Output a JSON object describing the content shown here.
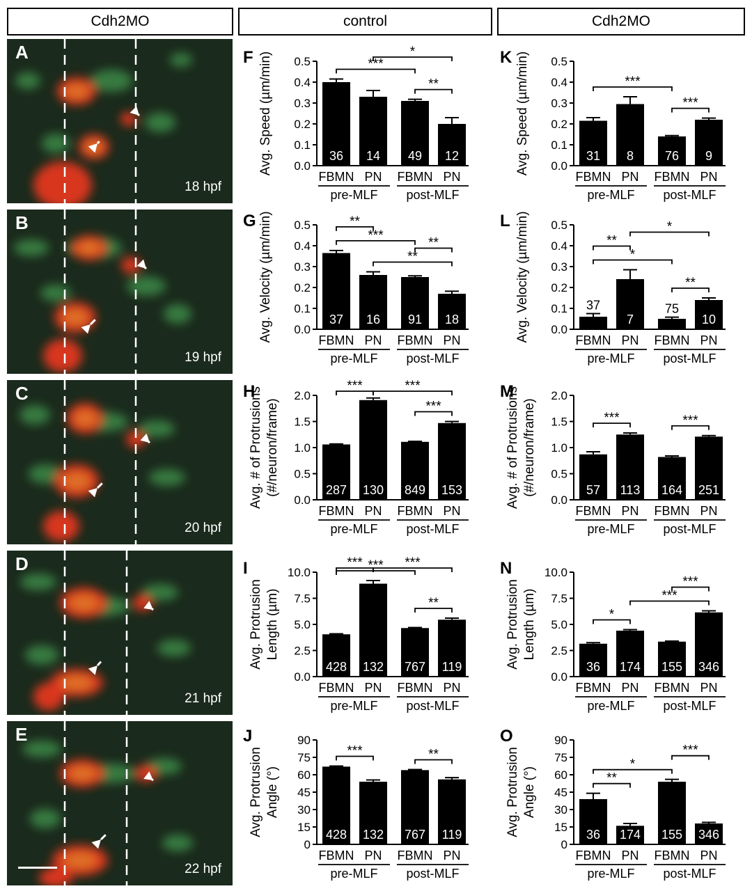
{
  "headers": {
    "left": "Cdh2MO",
    "middle": "control",
    "right": "Cdh2MO"
  },
  "micro_panels": [
    {
      "label": "A",
      "time": "18 hpf"
    },
    {
      "label": "B",
      "time": "19 hpf"
    },
    {
      "label": "C",
      "time": "20 hpf"
    },
    {
      "label": "D",
      "time": "21 hpf"
    },
    {
      "label": "E",
      "time": "22 hpf"
    }
  ],
  "chart_data": [
    {
      "panel": "F",
      "type": "bar",
      "ylabel": [
        "Avg. Speed (µm/min)"
      ],
      "ylim": [
        0,
        0.5
      ],
      "yticks": [
        "0.0",
        "0.1",
        "0.2",
        "0.3",
        "0.4",
        "0.5"
      ],
      "categories": [
        "FBMN",
        "PN",
        "FBMN",
        "PN"
      ],
      "groups": [
        "pre-MLF",
        "post-MLF"
      ],
      "values": [
        0.4,
        0.33,
        0.31,
        0.2
      ],
      "errors": [
        0.015,
        0.03,
        0.008,
        0.03
      ],
      "n": [
        "36",
        "14",
        "49",
        "12"
      ],
      "brackets": [
        {
          "from": 0,
          "to": 2,
          "label": "***"
        },
        {
          "from": 1,
          "to": 3,
          "label": "*"
        },
        {
          "from": 2,
          "to": 3,
          "label": "**"
        }
      ]
    },
    {
      "panel": "G",
      "type": "bar",
      "ylabel": [
        "Avg. Velocity (µm/min)"
      ],
      "ylim": [
        0,
        0.5
      ],
      "yticks": [
        "0.0",
        "0.1",
        "0.2",
        "0.3",
        "0.4",
        "0.5"
      ],
      "categories": [
        "FBMN",
        "PN",
        "FBMN",
        "PN"
      ],
      "groups": [
        "pre-MLF",
        "post-MLF"
      ],
      "values": [
        0.365,
        0.26,
        0.25,
        0.17
      ],
      "errors": [
        0.012,
        0.015,
        0.006,
        0.012
      ],
      "n": [
        "37",
        "16",
        "91",
        "18"
      ],
      "brackets": [
        {
          "from": 0,
          "to": 2,
          "label": "***"
        },
        {
          "from": 0,
          "to": 1,
          "label": "**"
        },
        {
          "from": 1,
          "to": 3,
          "label": "**"
        },
        {
          "from": 2,
          "to": 3,
          "label": "**"
        }
      ]
    },
    {
      "panel": "H",
      "type": "bar",
      "ylabel": [
        "Avg. # of Protrusions",
        "(#/neuron/frame)"
      ],
      "ylim": [
        0,
        2
      ],
      "yticks": [
        "0.0",
        "0.5",
        "1.0",
        "1.5",
        "2.0"
      ],
      "categories": [
        "FBMN",
        "PN",
        "FBMN",
        "PN"
      ],
      "groups": [
        "pre-MLF",
        "post-MLF"
      ],
      "values": [
        1.06,
        1.91,
        1.11,
        1.47
      ],
      "errors": [
        0.01,
        0.04,
        0.01,
        0.03
      ],
      "n": [
        "287",
        "130",
        "849",
        "153"
      ],
      "brackets": [
        {
          "from": 0,
          "to": 1,
          "label": "***"
        },
        {
          "from": 1,
          "to": 3,
          "label": "***"
        },
        {
          "from": 2,
          "to": 3,
          "label": "***"
        }
      ]
    },
    {
      "panel": "I",
      "type": "bar",
      "ylabel": [
        "Avg. Protrusion",
        "Length (µm)"
      ],
      "ylim": [
        0,
        10
      ],
      "yticks": [
        "0.0",
        "2.5",
        "5.0",
        "7.5",
        "10.0"
      ],
      "categories": [
        "FBMN",
        "PN",
        "FBMN",
        "PN"
      ],
      "groups": [
        "pre-MLF",
        "post-MLF"
      ],
      "values": [
        4.05,
        8.9,
        4.65,
        5.45
      ],
      "errors": [
        0.05,
        0.3,
        0.05,
        0.15
      ],
      "n": [
        "428",
        "132",
        "767",
        "119"
      ],
      "brackets": [
        {
          "from": 0,
          "to": 2,
          "label": "***"
        },
        {
          "from": 0,
          "to": 1,
          "label": "***"
        },
        {
          "from": 1,
          "to": 3,
          "label": "***"
        },
        {
          "from": 2,
          "to": 3,
          "label": "**"
        }
      ]
    },
    {
      "panel": "J",
      "type": "bar",
      "ylabel": [
        "Avg. Protrusion",
        "Angle (°)"
      ],
      "ylim": [
        0,
        90
      ],
      "yticks": [
        "0",
        "15",
        "30",
        "45",
        "60",
        "75",
        "90"
      ],
      "categories": [
        "FBMN",
        "PN",
        "FBMN",
        "PN"
      ],
      "groups": [
        "pre-MLF",
        "post-MLF"
      ],
      "values": [
        67,
        54,
        64,
        56
      ],
      "errors": [
        0.5,
        1.5,
        0.5,
        1.5
      ],
      "n": [
        "428",
        "132",
        "767",
        "119"
      ],
      "brackets": [
        {
          "from": 0,
          "to": 1,
          "label": "***"
        },
        {
          "from": 2,
          "to": 3,
          "label": "**"
        }
      ]
    },
    {
      "panel": "K",
      "type": "bar",
      "ylabel": [
        "Avg. Speed (µm/min)"
      ],
      "ylim": [
        0,
        0.5
      ],
      "yticks": [
        "0.0",
        "0.1",
        "0.2",
        "0.3",
        "0.4",
        "0.5"
      ],
      "categories": [
        "FBMN",
        "PN",
        "FBMN",
        "PN"
      ],
      "groups": [
        "pre-MLF",
        "post-MLF"
      ],
      "values": [
        0.215,
        0.295,
        0.14,
        0.22
      ],
      "errors": [
        0.015,
        0.035,
        0.004,
        0.008
      ],
      "n": [
        "31",
        "8",
        "76",
        "9"
      ],
      "brackets": [
        {
          "from": 0,
          "to": 2,
          "label": "***"
        },
        {
          "from": 2,
          "to": 3,
          "label": "***"
        }
      ]
    },
    {
      "panel": "L",
      "type": "bar",
      "ylabel": [
        "Avg. Velocity (µm/min)"
      ],
      "ylim": [
        0,
        0.5
      ],
      "yticks": [
        "0.0",
        "0.1",
        "0.2",
        "0.3",
        "0.4",
        "0.5"
      ],
      "categories": [
        "FBMN",
        "PN",
        "FBMN",
        "PN"
      ],
      "groups": [
        "pre-MLF",
        "post-MLF"
      ],
      "values": [
        0.06,
        0.24,
        0.05,
        0.14
      ],
      "errors": [
        0.015,
        0.045,
        0.008,
        0.01
      ],
      "n": [
        "37",
        "7",
        "75",
        "10"
      ],
      "n_above": [
        true,
        false,
        true,
        false
      ],
      "brackets": [
        {
          "from": 0,
          "to": 2,
          "label": "*"
        },
        {
          "from": 0,
          "to": 1,
          "label": "**"
        },
        {
          "from": 1,
          "to": 3,
          "label": "*"
        },
        {
          "from": 2,
          "to": 3,
          "label": "**"
        }
      ]
    },
    {
      "panel": "M",
      "type": "bar",
      "ylabel": [
        "Avg. # of Protrusions",
        "(#/neuron/frame)"
      ],
      "ylim": [
        0,
        2
      ],
      "yticks": [
        "0.0",
        "0.5",
        "1.0",
        "1.5",
        "2.0"
      ],
      "categories": [
        "FBMN",
        "PN",
        "FBMN",
        "PN"
      ],
      "groups": [
        "pre-MLF",
        "post-MLF"
      ],
      "values": [
        0.87,
        1.25,
        0.82,
        1.21
      ],
      "errors": [
        0.05,
        0.03,
        0.02,
        0.02
      ],
      "n": [
        "57",
        "113",
        "164",
        "251"
      ],
      "brackets": [
        {
          "from": 0,
          "to": 1,
          "label": "***"
        },
        {
          "from": 2,
          "to": 3,
          "label": "***"
        }
      ]
    },
    {
      "panel": "N",
      "type": "bar",
      "ylabel": [
        "Avg. Protrusion",
        "Length (µm)"
      ],
      "ylim": [
        0,
        10
      ],
      "yticks": [
        "0.0",
        "2.5",
        "5.0",
        "7.5",
        "10.0"
      ],
      "categories": [
        "FBMN",
        "PN",
        "FBMN",
        "PN"
      ],
      "groups": [
        "pre-MLF",
        "post-MLF"
      ],
      "values": [
        3.15,
        4.4,
        3.35,
        6.15
      ],
      "errors": [
        0.1,
        0.1,
        0.05,
        0.15
      ],
      "n": [
        "36",
        "174",
        "155",
        "346"
      ],
      "brackets": [
        {
          "from": 0,
          "to": 1,
          "label": "*"
        },
        {
          "from": 1,
          "to": 3,
          "label": "***"
        },
        {
          "from": 2,
          "to": 3,
          "label": "***"
        }
      ]
    },
    {
      "panel": "O",
      "type": "bar",
      "ylabel": [
        "Avg. Protrusion",
        "Angle (°)"
      ],
      "ylim": [
        0,
        90
      ],
      "yticks": [
        "0",
        "15",
        "30",
        "45",
        "60",
        "75",
        "90"
      ],
      "categories": [
        "FBMN",
        "PN",
        "FBMN",
        "PN"
      ],
      "groups": [
        "pre-MLF",
        "post-MLF"
      ],
      "values": [
        39,
        16,
        54,
        18
      ],
      "errors": [
        5,
        2,
        2,
        1
      ],
      "n": [
        "36",
        "174",
        "155",
        "346"
      ],
      "brackets": [
        {
          "from": 0,
          "to": 2,
          "label": "*"
        },
        {
          "from": 0,
          "to": 1,
          "label": "**"
        },
        {
          "from": 2,
          "to": 3,
          "label": "***"
        }
      ]
    }
  ]
}
